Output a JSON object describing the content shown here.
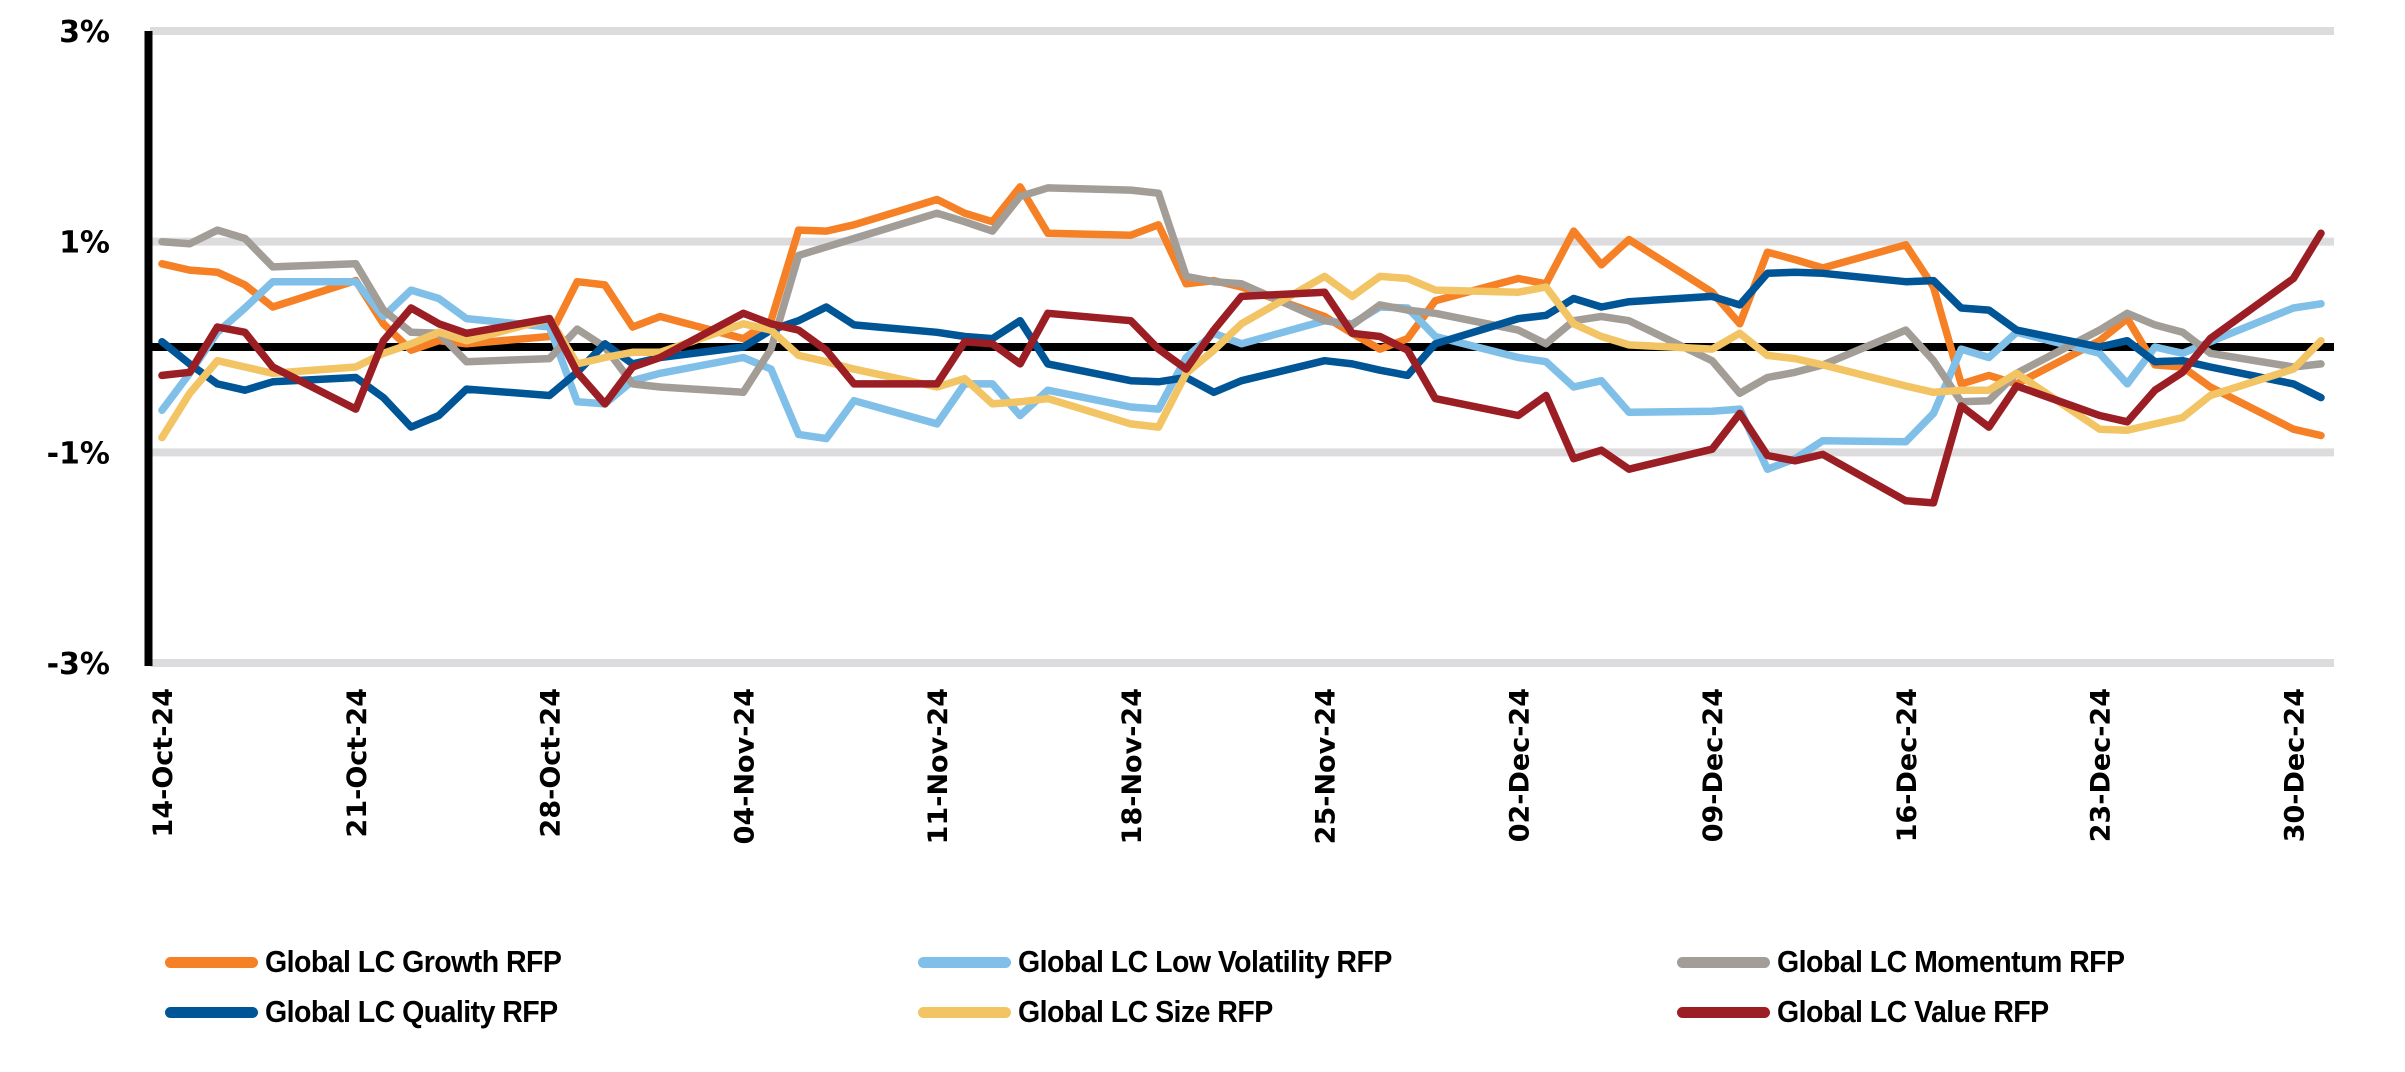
{
  "chart_data": {
    "type": "line",
    "title": "",
    "xlabel": "",
    "ylabel": "",
    "ylim": [
      -3,
      3
    ],
    "y_unit": "%",
    "y_ticks": [
      3,
      1,
      -1,
      -3
    ],
    "y_tick_labels": [
      "3%",
      "1%",
      "-1%",
      "-3%"
    ],
    "zero_line": true,
    "grid": true,
    "legend_position": "bottom",
    "x_axis_type": "date",
    "x_tick_labels": [
      "14-Oct-24",
      "21-Oct-24",
      "28-Oct-24",
      "04-Nov-24",
      "11-Nov-24",
      "18-Nov-24",
      "25-Nov-24",
      "02-Dec-24",
      "09-Dec-24",
      "16-Dec-24",
      "23-Dec-24",
      "30-Dec-24"
    ],
    "x_tick_days": [
      0,
      7,
      14,
      21,
      28,
      35,
      42,
      49,
      56,
      63,
      70,
      77
    ],
    "x_range_days": [
      0,
      78
    ],
    "x_dates": [
      "14-Oct-24",
      "15-Oct-24",
      "16-Oct-24",
      "17-Oct-24",
      "18-Oct-24",
      "21-Oct-24",
      "22-Oct-24",
      "23-Oct-24",
      "24-Oct-24",
      "25-Oct-24",
      "28-Oct-24",
      "29-Oct-24",
      "30-Oct-24",
      "31-Oct-24",
      "01-Nov-24",
      "04-Nov-24",
      "05-Nov-24",
      "06-Nov-24",
      "07-Nov-24",
      "08-Nov-24",
      "11-Nov-24",
      "12-Nov-24",
      "13-Nov-24",
      "14-Nov-24",
      "15-Nov-24",
      "18-Nov-24",
      "19-Nov-24",
      "20-Nov-24",
      "21-Nov-24",
      "22-Nov-24",
      "25-Nov-24",
      "26-Nov-24",
      "27-Nov-24",
      "28-Nov-24",
      "29-Nov-24",
      "02-Dec-24",
      "03-Dec-24",
      "04-Dec-24",
      "05-Dec-24",
      "06-Dec-24",
      "09-Dec-24",
      "10-Dec-24",
      "11-Dec-24",
      "12-Dec-24",
      "13-Dec-24",
      "16-Dec-24",
      "17-Dec-24",
      "18-Dec-24",
      "19-Dec-24",
      "20-Dec-24",
      "23-Dec-24",
      "24-Dec-24",
      "25-Dec-24",
      "26-Dec-24",
      "27-Dec-24",
      "30-Dec-24",
      "31-Dec-24"
    ],
    "x_days": [
      0,
      1,
      2,
      3,
      4,
      7,
      8,
      9,
      10,
      11,
      14,
      15,
      16,
      17,
      18,
      21,
      22,
      23,
      24,
      25,
      28,
      29,
      30,
      31,
      32,
      35,
      36,
      37,
      38,
      39,
      42,
      43,
      44,
      45,
      46,
      49,
      50,
      51,
      52,
      53,
      56,
      57,
      58,
      59,
      60,
      63,
      64,
      65,
      66,
      67,
      70,
      71,
      72,
      73,
      74,
      77,
      78
    ],
    "series": [
      {
        "name": "Global LC Growth RFP",
        "color": "#F58025",
        "values": [
          0.79,
          0.73,
          0.71,
          0.59,
          0.38,
          0.63,
          0.22,
          -0.03,
          0.06,
          0.03,
          0.1,
          0.62,
          0.59,
          0.19,
          0.29,
          0.08,
          0.25,
          1.11,
          1.1,
          1.16,
          1.4,
          1.27,
          1.19,
          1.52,
          1.08,
          1.06,
          1.16,
          0.6,
          0.63,
          0.57,
          0.29,
          0.13,
          -0.02,
          0.08,
          0.44,
          0.65,
          0.6,
          1.1,
          0.78,
          1.02,
          0.52,
          0.22,
          0.9,
          0.83,
          0.75,
          0.97,
          0.57,
          -0.35,
          -0.27,
          -0.35,
          0.06,
          0.27,
          -0.17,
          -0.19,
          -0.38,
          -0.78,
          -0.84
        ]
      },
      {
        "name": "Global LC Low Volatility RFP",
        "color": "#7FBFE8",
        "values": [
          -0.6,
          -0.25,
          0.14,
          0.37,
          0.62,
          0.62,
          0.29,
          0.54,
          0.46,
          0.27,
          0.19,
          -0.52,
          -0.54,
          -0.32,
          -0.25,
          -0.1,
          -0.21,
          -0.83,
          -0.87,
          -0.51,
          -0.73,
          -0.35,
          -0.35,
          -0.65,
          -0.41,
          -0.57,
          -0.59,
          -0.1,
          0.13,
          0.03,
          0.25,
          0.22,
          0.38,
          0.37,
          0.1,
          -0.1,
          -0.14,
          -0.38,
          -0.32,
          -0.62,
          -0.61,
          -0.59,
          -1.16,
          -1.06,
          -0.89,
          -0.9,
          -0.63,
          -0.02,
          -0.1,
          0.14,
          -0.06,
          -0.35,
          0.0,
          -0.06,
          0.05,
          0.37,
          0.41
        ]
      },
      {
        "name": "Global LC Momentum RFP",
        "color": "#A39D97",
        "values": [
          1.0,
          0.98,
          1.11,
          1.03,
          0.76,
          0.79,
          0.35,
          0.14,
          0.13,
          -0.14,
          -0.11,
          0.17,
          0.0,
          -0.35,
          -0.38,
          -0.43,
          -0.02,
          0.87,
          0.95,
          1.03,
          1.27,
          1.19,
          1.1,
          1.43,
          1.51,
          1.49,
          1.46,
          0.67,
          0.62,
          0.6,
          0.25,
          0.21,
          0.4,
          0.35,
          0.32,
          0.16,
          0.03,
          0.25,
          0.29,
          0.25,
          -0.13,
          -0.44,
          -0.29,
          -0.24,
          -0.17,
          0.16,
          -0.13,
          -0.52,
          -0.51,
          -0.25,
          0.16,
          0.32,
          0.21,
          0.14,
          -0.06,
          -0.19,
          -0.16
        ]
      },
      {
        "name": "Global LC Quality RFP",
        "color": "#005596",
        "values": [
          0.05,
          -0.16,
          -0.35,
          -0.41,
          -0.33,
          -0.29,
          -0.48,
          -0.76,
          -0.65,
          -0.4,
          -0.46,
          -0.24,
          0.03,
          -0.16,
          -0.1,
          0.0,
          0.16,
          0.25,
          0.38,
          0.21,
          0.14,
          0.1,
          0.08,
          0.25,
          -0.16,
          -0.32,
          -0.33,
          -0.29,
          -0.43,
          -0.32,
          -0.13,
          -0.16,
          -0.22,
          -0.27,
          0.03,
          0.27,
          0.3,
          0.46,
          0.38,
          0.43,
          0.48,
          0.4,
          0.7,
          0.71,
          0.7,
          0.62,
          0.63,
          0.37,
          0.35,
          0.16,
          0.0,
          0.06,
          -0.14,
          -0.13,
          -0.19,
          -0.35,
          -0.48
        ]
      },
      {
        "name": "Global LC Size RFP",
        "color": "#F2C464",
        "values": [
          -0.86,
          -0.44,
          -0.13,
          -0.19,
          -0.25,
          -0.19,
          -0.06,
          0.03,
          0.14,
          0.06,
          0.27,
          -0.16,
          -0.1,
          -0.05,
          -0.05,
          0.22,
          0.16,
          -0.08,
          -0.14,
          -0.21,
          -0.38,
          -0.3,
          -0.54,
          -0.52,
          -0.49,
          -0.73,
          -0.76,
          -0.25,
          -0.03,
          0.22,
          0.67,
          0.48,
          0.67,
          0.65,
          0.54,
          0.52,
          0.57,
          0.22,
          0.1,
          0.02,
          -0.02,
          0.13,
          -0.08,
          -0.11,
          -0.17,
          -0.37,
          -0.43,
          -0.41,
          -0.41,
          -0.25,
          -0.78,
          -0.79,
          -0.73,
          -0.67,
          -0.46,
          -0.21,
          0.06
        ]
      },
      {
        "name": "Global LC Value RFP",
        "color": "#9A1E23",
        "values": [
          -0.27,
          -0.24,
          0.19,
          0.14,
          -0.19,
          -0.59,
          0.06,
          0.37,
          0.22,
          0.13,
          0.27,
          -0.24,
          -0.54,
          -0.19,
          -0.1,
          0.32,
          0.22,
          0.16,
          -0.03,
          -0.35,
          -0.35,
          0.05,
          0.03,
          -0.16,
          0.32,
          0.25,
          -0.02,
          -0.21,
          0.16,
          0.48,
          0.52,
          0.13,
          0.1,
          -0.03,
          -0.49,
          -0.65,
          -0.46,
          -1.06,
          -0.98,
          -1.16,
          -0.97,
          -0.63,
          -1.03,
          -1.08,
          -1.02,
          -1.46,
          -1.48,
          -0.56,
          -0.76,
          -0.37,
          -0.65,
          -0.71,
          -0.41,
          -0.24,
          0.08,
          0.65,
          1.08
        ]
      }
    ]
  },
  "legend": {
    "items": [
      {
        "label": "Global LC Growth RFP",
        "color": "#F58025"
      },
      {
        "label": "Global LC Low Volatility RFP",
        "color": "#7FBFE8"
      },
      {
        "label": "Global LC Momentum RFP",
        "color": "#A39D97"
      },
      {
        "label": "Global LC Quality RFP",
        "color": "#005596"
      },
      {
        "label": "Global LC Size RFP",
        "color": "#F2C464"
      },
      {
        "label": "Global LC Value RFP",
        "color": "#9A1E23"
      }
    ]
  },
  "colors": {
    "gridline": "#DCDCDE",
    "axis": "#000000",
    "zero_line": "#000000"
  }
}
